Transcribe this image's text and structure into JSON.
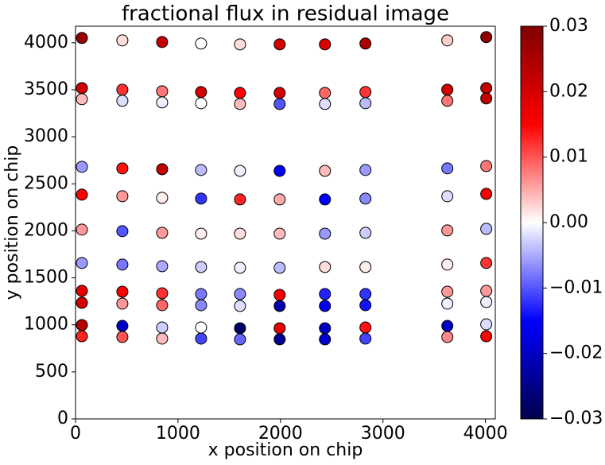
{
  "chart_data": {
    "type": "scatter",
    "title": "fractional flux in residual image",
    "xlabel": "x position on chip",
    "ylabel": "y position on chip",
    "xlim": [
      0,
      4096
    ],
    "ylim": [
      0,
      4176
    ],
    "xticks": [
      0,
      1000,
      2000,
      3000,
      4000
    ],
    "yticks": [
      0,
      500,
      1000,
      1500,
      2000,
      2500,
      3000,
      3500,
      4000
    ],
    "colormap": "seismic",
    "marker_edge_color": "#000000",
    "clim": [
      -0.03,
      0.03
    ],
    "cticks": [
      {
        "value": -0.03,
        "label": "−0.03"
      },
      {
        "value": -0.02,
        "label": "−0.02"
      },
      {
        "value": -0.01,
        "label": "−0.01"
      },
      {
        "value": 0,
        "label": "0.00"
      },
      0.01,
      0.02,
      0.03
    ],
    "x": [
      62,
      457,
      845,
      1225,
      1605,
      1992,
      2434,
      2829,
      3628,
      4008,
      62,
      457,
      845,
      1225,
      1605,
      1992,
      2434,
      2829,
      3628,
      4008,
      62,
      457,
      845,
      1225,
      1605,
      1992,
      2434,
      2829,
      3628,
      4008,
      62,
      457,
      845,
      1225,
      1605,
      1992,
      2434,
      2829,
      3628,
      4008,
      62,
      457,
      845,
      1225,
      1605,
      1992,
      2434,
      2829,
      3628,
      4008,
      62,
      457,
      845,
      1225,
      1605,
      1992,
      2434,
      2829,
      3628,
      4008,
      62,
      457,
      845,
      1225,
      1605,
      1992,
      2434,
      2829,
      3628,
      4008,
      62,
      457,
      845,
      1225,
      1605,
      1992,
      2434,
      2829,
      3628,
      4008,
      62,
      457,
      845,
      1225,
      1605,
      1992,
      2434,
      2829,
      3628,
      4008,
      62,
      457,
      845,
      1225,
      1605,
      1992,
      2434,
      2829,
      3628,
      4008,
      62,
      457,
      845,
      1225,
      1605,
      1992,
      2434,
      2829,
      3628,
      4008
    ],
    "y": [
      4051,
      4025,
      4008,
      3992,
      3983,
      3983,
      3983,
      3992,
      4025,
      4060,
      3518,
      3501,
      3484,
      3476,
      3467,
      3467,
      3467,
      3476,
      3501,
      3518,
      3400,
      3383,
      3366,
      3357,
      3349,
      3349,
      3349,
      3357,
      3383,
      3408,
      2681,
      2664,
      2655,
      2647,
      2638,
      2638,
      2638,
      2647,
      2664,
      2689,
      2385,
      2368,
      2351,
      2343,
      2334,
      2334,
      2334,
      2343,
      2368,
      2393,
      2013,
      1996,
      1979,
      1970,
      1970,
      1970,
      1970,
      1979,
      2004,
      2021,
      1658,
      1641,
      1624,
      1615,
      1607,
      1607,
      1615,
      1615,
      1641,
      1658,
      1362,
      1353,
      1336,
      1328,
      1328,
      1319,
      1328,
      1328,
      1353,
      1362,
      1235,
      1226,
      1209,
      1209,
      1201,
      1201,
      1201,
      1209,
      1226,
      1243,
      998,
      989,
      972,
      972,
      964,
      964,
      964,
      972,
      989,
      1006,
      879,
      871,
      854,
      854,
      846,
      846,
      846,
      854,
      871,
      879
    ],
    "values": [
      0.027,
      0.002,
      0.022,
      0.0,
      0.002,
      0.02,
      0.019,
      0.025,
      0.003,
      0.028,
      0.02,
      0.012,
      0.008,
      0.02,
      0.015,
      0.02,
      0.009,
      0.012,
      0.02,
      0.022,
      0.004,
      -0.002,
      -0.001,
      0.0,
      0.004,
      -0.01,
      -0.002,
      -0.004,
      0.008,
      0.022,
      -0.006,
      0.014,
      0.022,
      -0.004,
      -0.001,
      -0.016,
      0.004,
      -0.006,
      -0.008,
      0.008,
      0.015,
      0.006,
      0.001,
      -0.012,
      0.013,
      0.005,
      -0.015,
      -0.007,
      -0.002,
      0.016,
      0.006,
      -0.01,
      0.006,
      0.001,
      0.002,
      0.004,
      -0.006,
      -0.003,
      0.006,
      -0.004,
      -0.006,
      -0.008,
      -0.005,
      -0.003,
      -0.001,
      -0.004,
      0.002,
      0.001,
      0.001,
      0.012,
      0.018,
      0.015,
      0.012,
      -0.008,
      -0.007,
      0.016,
      -0.013,
      -0.012,
      0.006,
      0.006,
      0.02,
      0.006,
      0.009,
      -0.007,
      -0.002,
      -0.022,
      -0.016,
      -0.014,
      -0.001,
      -0.001,
      0.024,
      -0.02,
      -0.003,
      0.0,
      -0.028,
      0.018,
      -0.02,
      0.014,
      -0.02,
      -0.002,
      0.013,
      0.01,
      0.004,
      -0.011,
      -0.009,
      -0.024,
      -0.019,
      -0.011,
      0.007,
      0.015
    ]
  }
}
